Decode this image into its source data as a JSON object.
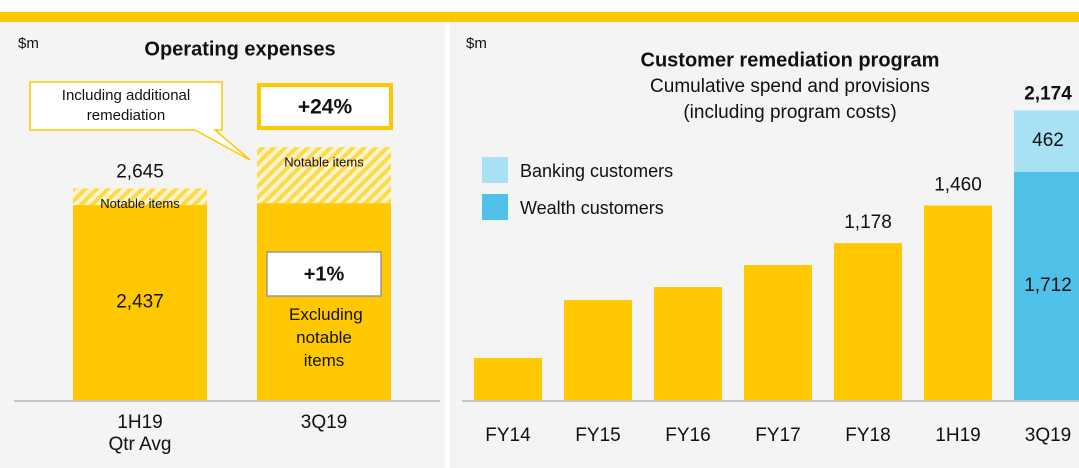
{
  "chart_data": [
    {
      "type": "bar",
      "stacked": true,
      "title": "Operating expenses",
      "unit": "$m",
      "categories": [
        "1H19 Qtr Avg",
        "3Q19"
      ],
      "series": [
        {
          "name": "Excluding notable items",
          "color": "#ffc800",
          "values": [
            2437,
            2461
          ],
          "value_labels": [
            "2,437",
            null
          ]
        },
        {
          "name": "Notable items",
          "color": "#ffc800",
          "pattern": "hatch",
          "values": [
            208,
            700
          ]
        }
      ],
      "totals": [
        2645,
        null
      ],
      "total_labels": [
        "2,645",
        null
      ],
      "ylim": [
        0,
        4000
      ],
      "annotations": [
        "Including additional remediation",
        "+24%",
        "+1%"
      ]
    },
    {
      "type": "bar",
      "stacked": true,
      "title": "Customer remediation program",
      "subtitle": [
        "Cumulative spend and provisions",
        "(including program costs)"
      ],
      "unit": "$m",
      "categories": [
        "FY14",
        "FY15",
        "FY16",
        "FY17",
        "FY18",
        "1H19",
        "3Q19"
      ],
      "series": [
        {
          "color": "#ffc800",
          "values": [
            315,
            750,
            848,
            1013,
            1178,
            1460,
            null
          ],
          "value_labels": [
            null,
            null,
            null,
            null,
            "1,178",
            "1,460",
            null
          ]
        },
        {
          "name": "Wealth customers",
          "color": "#4fc1e9",
          "values": [
            null,
            null,
            null,
            null,
            null,
            null,
            1712
          ],
          "value_labels": [
            null,
            null,
            null,
            null,
            null,
            null,
            "1,712"
          ]
        },
        {
          "name": "Banking customers",
          "color": "#a8e0f4",
          "values": [
            null,
            null,
            null,
            null,
            null,
            null,
            462
          ],
          "value_labels": [
            null,
            null,
            null,
            null,
            null,
            null,
            "462"
          ]
        }
      ],
      "totals": [
        null,
        null,
        null,
        null,
        null,
        null,
        2174
      ],
      "total_labels": [
        null,
        null,
        null,
        null,
        null,
        null,
        "2,174"
      ],
      "ylim": [
        0,
        2800
      ]
    }
  ]
}
